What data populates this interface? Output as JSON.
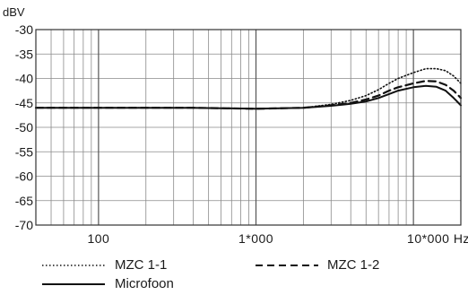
{
  "chart_data": {
    "type": "line",
    "ylabel": "dBV",
    "xscale": "log",
    "xlim": [
      40,
      20000
    ],
    "ylim": [
      -70,
      -30
    ],
    "yticks": [
      -30,
      -35,
      -40,
      -45,
      -50,
      -55,
      -60,
      -65,
      -70
    ],
    "xtick_labels": [
      {
        "value": 100,
        "label": "100"
      },
      {
        "value": 1000,
        "label": "1*000"
      },
      {
        "value": 10000,
        "label": "10*000 Hz"
      }
    ],
    "grid": true,
    "legend_position": "bottom",
    "series": [
      {
        "name": "MZC 1-1",
        "style": "dotted",
        "points": [
          [
            40,
            -46
          ],
          [
            100,
            -46
          ],
          [
            400,
            -46
          ],
          [
            1000,
            -46.2
          ],
          [
            2000,
            -46
          ],
          [
            3000,
            -45.3
          ],
          [
            4000,
            -44.5
          ],
          [
            5000,
            -43.5
          ],
          [
            6000,
            -42.3
          ],
          [
            7000,
            -41
          ],
          [
            8000,
            -40
          ],
          [
            10000,
            -38.8
          ],
          [
            12000,
            -38
          ],
          [
            14000,
            -38
          ],
          [
            16000,
            -38.4
          ],
          [
            18000,
            -39.5
          ],
          [
            20000,
            -41
          ]
        ]
      },
      {
        "name": "MZC 1-2",
        "style": "dashed",
        "points": [
          [
            40,
            -46
          ],
          [
            100,
            -46
          ],
          [
            400,
            -46
          ],
          [
            1000,
            -46.2
          ],
          [
            2000,
            -46
          ],
          [
            3000,
            -45.5
          ],
          [
            4000,
            -45
          ],
          [
            5000,
            -44.3
          ],
          [
            6000,
            -43.5
          ],
          [
            7000,
            -42.5
          ],
          [
            8000,
            -41.8
          ],
          [
            10000,
            -41
          ],
          [
            12000,
            -40.5
          ],
          [
            14000,
            -40.6
          ],
          [
            16000,
            -41.3
          ],
          [
            18000,
            -42.5
          ],
          [
            20000,
            -44
          ]
        ]
      },
      {
        "name": "Microfoon",
        "style": "solid",
        "points": [
          [
            40,
            -46
          ],
          [
            100,
            -46
          ],
          [
            400,
            -46
          ],
          [
            1000,
            -46.2
          ],
          [
            2000,
            -46
          ],
          [
            3000,
            -45.6
          ],
          [
            4000,
            -45.2
          ],
          [
            5000,
            -44.7
          ],
          [
            6000,
            -44
          ],
          [
            7000,
            -43.2
          ],
          [
            8000,
            -42.5
          ],
          [
            10000,
            -41.8
          ],
          [
            12000,
            -41.5
          ],
          [
            14000,
            -41.7
          ],
          [
            16000,
            -42.5
          ],
          [
            18000,
            -44
          ],
          [
            20000,
            -45.5
          ]
        ]
      }
    ]
  }
}
